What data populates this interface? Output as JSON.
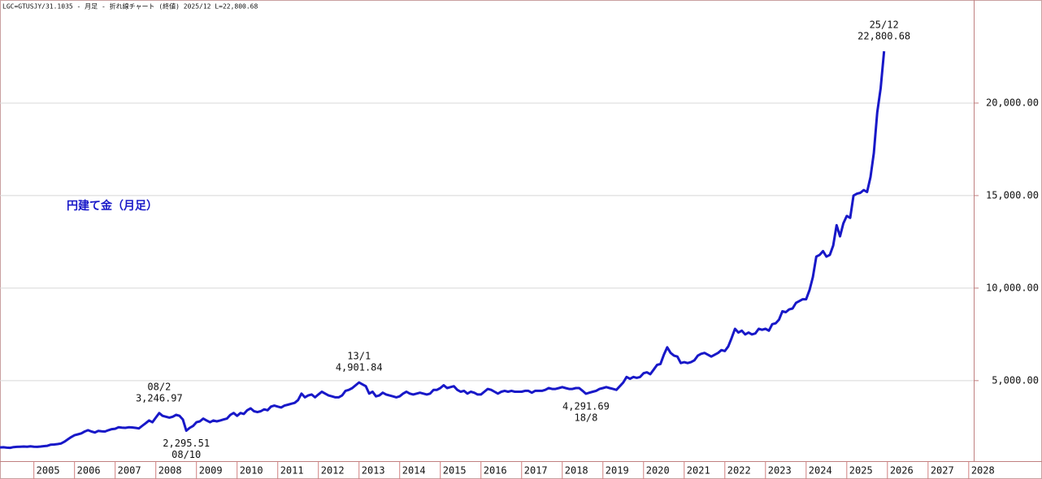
{
  "chart_data": {
    "type": "line",
    "title": "LGC=GTUSJY/31.1035 - 月足 - 折れ線チャート (終値) 2025/12 L=22,800.68",
    "label": "円建て金（月足）",
    "x": [
      "2004-03",
      "2004-04",
      "2004-05",
      "2004-06",
      "2004-07",
      "2004-08",
      "2004-09",
      "2004-10",
      "2004-11",
      "2004-12",
      "2005-01",
      "2005-02",
      "2005-03",
      "2005-04",
      "2005-05",
      "2005-06",
      "2005-07",
      "2005-08",
      "2005-09",
      "2005-10",
      "2005-11",
      "2005-12",
      "2006-01",
      "2006-02",
      "2006-03",
      "2006-04",
      "2006-05",
      "2006-06",
      "2006-07",
      "2006-08",
      "2006-09",
      "2006-10",
      "2006-11",
      "2006-12",
      "2007-01",
      "2007-02",
      "2007-03",
      "2007-04",
      "2007-05",
      "2007-06",
      "2007-07",
      "2007-08",
      "2007-09",
      "2007-10",
      "2007-11",
      "2007-12",
      "2008-01",
      "2008-02",
      "2008-03",
      "2008-04",
      "2008-05",
      "2008-06",
      "2008-07",
      "2008-08",
      "2008-09",
      "2008-10",
      "2008-11",
      "2008-12",
      "2009-01",
      "2009-02",
      "2009-03",
      "2009-04",
      "2009-05",
      "2009-06",
      "2009-07",
      "2009-08",
      "2009-09",
      "2009-10",
      "2009-11",
      "2009-12",
      "2010-01",
      "2010-02",
      "2010-03",
      "2010-04",
      "2010-05",
      "2010-06",
      "2010-07",
      "2010-08",
      "2010-09",
      "2010-10",
      "2010-11",
      "2010-12",
      "2011-01",
      "2011-02",
      "2011-03",
      "2011-04",
      "2011-05",
      "2011-06",
      "2011-07",
      "2011-08",
      "2011-09",
      "2011-10",
      "2011-11",
      "2011-12",
      "2012-01",
      "2012-02",
      "2012-03",
      "2012-04",
      "2012-05",
      "2012-06",
      "2012-07",
      "2012-08",
      "2012-09",
      "2012-10",
      "2012-11",
      "2012-12",
      "2013-01",
      "2013-02",
      "2013-03",
      "2013-04",
      "2013-05",
      "2013-06",
      "2013-07",
      "2013-08",
      "2013-09",
      "2013-10",
      "2013-11",
      "2013-12",
      "2014-01",
      "2014-02",
      "2014-03",
      "2014-04",
      "2014-05",
      "2014-06",
      "2014-07",
      "2014-08",
      "2014-09",
      "2014-10",
      "2014-11",
      "2014-12",
      "2015-01",
      "2015-02",
      "2015-03",
      "2015-04",
      "2015-05",
      "2015-06",
      "2015-07",
      "2015-08",
      "2015-09",
      "2015-10",
      "2015-11",
      "2015-12",
      "2016-01",
      "2016-02",
      "2016-03",
      "2016-04",
      "2016-05",
      "2016-06",
      "2016-07",
      "2016-08",
      "2016-09",
      "2016-10",
      "2016-11",
      "2016-12",
      "2017-01",
      "2017-02",
      "2017-03",
      "2017-04",
      "2017-05",
      "2017-06",
      "2017-07",
      "2017-08",
      "2017-09",
      "2017-10",
      "2017-11",
      "2017-12",
      "2018-01",
      "2018-02",
      "2018-03",
      "2018-04",
      "2018-05",
      "2018-06",
      "2018-07",
      "2018-08",
      "2018-09",
      "2018-10",
      "2018-11",
      "2018-12",
      "2019-01",
      "2019-02",
      "2019-03",
      "2019-04",
      "2019-05",
      "2019-06",
      "2019-07",
      "2019-08",
      "2019-09",
      "2019-10",
      "2019-11",
      "2019-12",
      "2020-01",
      "2020-02",
      "2020-03",
      "2020-04",
      "2020-05",
      "2020-06",
      "2020-07",
      "2020-08",
      "2020-09",
      "2020-10",
      "2020-11",
      "2020-12",
      "2021-01",
      "2021-02",
      "2021-03",
      "2021-04",
      "2021-05",
      "2021-06",
      "2021-07",
      "2021-08",
      "2021-09",
      "2021-10",
      "2021-11",
      "2021-12",
      "2022-01",
      "2022-02",
      "2022-03",
      "2022-04",
      "2022-05",
      "2022-06",
      "2022-07",
      "2022-08",
      "2022-09",
      "2022-10",
      "2022-11",
      "2022-12",
      "2023-01",
      "2023-02",
      "2023-03",
      "2023-04",
      "2023-05",
      "2023-06",
      "2023-07",
      "2023-08",
      "2023-09",
      "2023-10",
      "2023-11",
      "2023-12",
      "2024-01",
      "2024-02",
      "2024-03",
      "2024-04",
      "2024-05",
      "2024-06",
      "2024-07",
      "2024-08",
      "2024-09",
      "2024-10",
      "2024-11",
      "2024-12",
      "2025-01",
      "2025-02",
      "2025-03",
      "2025-04",
      "2025-05",
      "2025-06",
      "2025-07",
      "2025-08",
      "2025-09",
      "2025-10",
      "2025-11",
      "2025-12"
    ],
    "series": [
      {
        "color": "#1818c8",
        "values": [
          1390,
          1400,
          1380,
          1370,
          1410,
          1420,
          1430,
          1440,
          1430,
          1450,
          1430,
          1420,
          1440,
          1460,
          1480,
          1540,
          1550,
          1570,
          1600,
          1700,
          1820,
          1950,
          2050,
          2100,
          2150,
          2250,
          2320,
          2250,
          2200,
          2280,
          2260,
          2250,
          2320,
          2380,
          2400,
          2480,
          2460,
          2450,
          2480,
          2470,
          2450,
          2420,
          2560,
          2700,
          2850,
          2750,
          3000,
          3246.97,
          3100,
          3050,
          3000,
          3050,
          3150,
          3100,
          2900,
          2295.51,
          2450,
          2550,
          2750,
          2800,
          2950,
          2850,
          2750,
          2850,
          2800,
          2850,
          2900,
          2950,
          3150,
          3250,
          3100,
          3250,
          3200,
          3400,
          3500,
          3350,
          3300,
          3350,
          3450,
          3400,
          3600,
          3650,
          3600,
          3550,
          3650,
          3700,
          3750,
          3800,
          3950,
          4300,
          4100,
          4200,
          4250,
          4100,
          4250,
          4400,
          4300,
          4200,
          4150,
          4100,
          4100,
          4200,
          4450,
          4500,
          4600,
          4750,
          4901.84,
          4800,
          4700,
          4300,
          4400,
          4150,
          4200,
          4350,
          4250,
          4200,
          4150,
          4100,
          4150,
          4300,
          4400,
          4300,
          4250,
          4300,
          4350,
          4300,
          4250,
          4300,
          4500,
          4500,
          4600,
          4750,
          4600,
          4650,
          4700,
          4500,
          4400,
          4450,
          4300,
          4400,
          4350,
          4250,
          4250,
          4400,
          4550,
          4500,
          4400,
          4300,
          4400,
          4450,
          4400,
          4450,
          4400,
          4400,
          4400,
          4450,
          4450,
          4350,
          4450,
          4450,
          4450,
          4500,
          4600,
          4550,
          4550,
          4600,
          4650,
          4600,
          4550,
          4550,
          4600,
          4600,
          4450,
          4291.69,
          4350,
          4400,
          4450,
          4550,
          4600,
          4650,
          4600,
          4550,
          4500,
          4700,
          4900,
          5200,
          5100,
          5200,
          5150,
          5200,
          5400,
          5450,
          5350,
          5600,
          5850,
          5900,
          6400,
          6800,
          6500,
          6350,
          6300,
          5950,
          6000,
          5950,
          6000,
          6100,
          6350,
          6450,
          6500,
          6400,
          6300,
          6400,
          6500,
          6650,
          6600,
          6850,
          7300,
          7800,
          7600,
          7700,
          7500,
          7600,
          7500,
          7550,
          7800,
          7750,
          7800,
          7700,
          8050,
          8100,
          8300,
          8750,
          8700,
          8850,
          8900,
          9200,
          9300,
          9400,
          9400,
          9900,
          10600,
          11700,
          11800,
          12000,
          11700,
          11800,
          12300,
          13400,
          12800,
          13500,
          13900,
          13800,
          15000,
          15100,
          15150,
          15300,
          15200,
          16000,
          17300,
          19500,
          20800,
          22800.68
        ]
      }
    ],
    "xlim": [
      "2004-03",
      "2028-02"
    ],
    "xticks": [
      "2005",
      "2006",
      "2007",
      "2008",
      "2009",
      "2010",
      "2011",
      "2012",
      "2013",
      "2014",
      "2015",
      "2016",
      "2017",
      "2018",
      "2019",
      "2020",
      "2021",
      "2022",
      "2023",
      "2024",
      "2025",
      "2026",
      "2027",
      "2028"
    ],
    "ylim": [
      650,
      25570
    ],
    "yticks": [
      {
        "value": 5000,
        "label": "5,000.00"
      },
      {
        "value": 10000,
        "label": "10,000.00"
      },
      {
        "value": 15000,
        "label": "15,000.00"
      },
      {
        "value": 20000,
        "label": "20,000.00"
      }
    ],
    "grid": true,
    "annotations": [
      {
        "x": "2008-02",
        "lines": [
          "08/2",
          "3,246.97"
        ],
        "side": "above"
      },
      {
        "x": "2008-10",
        "lines": [
          "2,295.51",
          "08/10"
        ],
        "side": "below"
      },
      {
        "x": "2013-01",
        "lines": [
          "13/1",
          "4,901.84"
        ],
        "side": "above"
      },
      {
        "x": "2018-08",
        "lines": [
          "4,291.69",
          "18/8"
        ],
        "side": "below"
      },
      {
        "x": "2025-12",
        "lines": [
          "25/12",
          "22,800.68"
        ],
        "side": "above"
      }
    ]
  }
}
